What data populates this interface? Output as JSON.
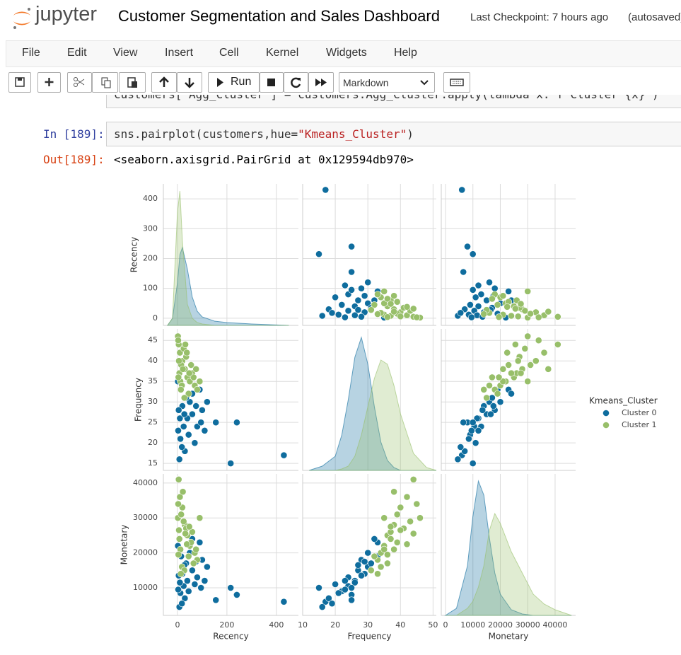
{
  "header": {
    "logo": "jupyter",
    "title": "Customer Segmentation and Sales Dashboard",
    "checkpoint": "Last Checkpoint: 7 hours ago",
    "autosave": "(autosaved)"
  },
  "menu": [
    "File",
    "Edit",
    "View",
    "Insert",
    "Cell",
    "Kernel",
    "Widgets",
    "Help"
  ],
  "toolbar": {
    "run": "Run",
    "cell_type": "Markdown"
  },
  "cells": {
    "hidden_code": "customers[\"Agg_Cluster\"] = customers.Agg_Cluster.apply(lambda x: f\"Cluster {x}\")",
    "in_prompt": "In [189]:",
    "code": [
      "sns.pairplot(customers,hue=",
      "\"Kmeans_Cluster\"",
      ")"
    ],
    "out_prompt": "Out[189]:",
    "output": "<seaborn.axisgrid.PairGrid at 0x129594db970>"
  },
  "chart_data": {
    "type": "pairplot",
    "legend_title": "Kmeans_Cluster",
    "grid": true,
    "diag_ylim": [
      0,
      1
    ],
    "variables": [
      {
        "name": "Recency",
        "xlim": [
          -57,
          489
        ],
        "ylim": [
          -24,
          450
        ],
        "xticks": [
          0,
          200,
          400
        ],
        "yticks": [
          0,
          100,
          200,
          300,
          400
        ]
      },
      {
        "name": "Frequency",
        "xlim": [
          10,
          51
        ],
        "ylim": [
          13.3,
          47.8
        ],
        "xticks": [
          10,
          20,
          30,
          40,
          50
        ],
        "yticks": [
          15,
          20,
          25,
          30,
          35,
          40,
          45
        ]
      },
      {
        "name": "Monetary",
        "xlim": [
          -1550,
          47500
        ],
        "ylim": [
          2100,
          42600
        ],
        "xticks": [
          0,
          10000,
          20000,
          30000,
          40000
        ],
        "yticks": [
          10000,
          20000,
          30000,
          40000
        ]
      }
    ],
    "series": [
      {
        "name": "Cluster 0",
        "color": "#0f6d9e",
        "data": [
          [
            430,
            215,
            240,
            155,
            120,
            100,
            90,
            80,
            70,
            60,
            50,
            45,
            40,
            35,
            30,
            25,
            20,
            15,
            12,
            10,
            8,
            5,
            3,
            2,
            60,
            110,
            75,
            18,
            28,
            95
          ],
          [
            17,
            15,
            25,
            25,
            30,
            28,
            33,
            24,
            20,
            27,
            30,
            22,
            26,
            31,
            18,
            24,
            29,
            33,
            21,
            26,
            16,
            28,
            23,
            35,
            32,
            23,
            29,
            19,
            27,
            25
          ],
          [
            6000,
            10000,
            8000,
            6500,
            16000,
            18000,
            23000,
            13000,
            11000,
            15000,
            20000,
            9000,
            12000,
            17000,
            7000,
            10500,
            14000,
            19000,
            8500,
            11500,
            4500,
            13500,
            9500,
            22000,
            24000,
            12000,
            17500,
            5500,
            16500,
            10000
          ]
        ],
        "kde": [
          {
            "x": [
              -40,
              -20,
              0,
              10,
              20,
              40,
              60,
              80,
              100,
              150,
              200,
              300,
              450
            ],
            "density": [
              0,
              0.05,
              0.3,
              0.5,
              0.55,
              0.4,
              0.2,
              0.1,
              0.06,
              0.03,
              0.02,
              0.01,
              0
            ]
          },
          {
            "x": [
              12,
              16,
              20,
              22,
              24,
              26,
              28,
              30,
              32,
              34,
              36,
              38,
              40,
              44,
              48,
              51
            ],
            "density": [
              0,
              0.03,
              0.1,
              0.25,
              0.5,
              0.8,
              0.94,
              0.75,
              0.45,
              0.2,
              0.07,
              0.02,
              0,
              0,
              0,
              0
            ]
          },
          {
            "x": [
              0,
              4000,
              8000,
              10000,
              12000,
              14000,
              16000,
              18000,
              20000,
              24000,
              28000,
              32000,
              36000,
              40000,
              46000
            ],
            "density": [
              0,
              0.05,
              0.35,
              0.7,
              0.95,
              0.85,
              0.55,
              0.3,
              0.15,
              0.04,
              0.01,
              0,
              0,
              0,
              0
            ]
          }
        ]
      },
      {
        "name": "Cluster 1",
        "color": "#98bf6a",
        "data": [
          [
            5,
            2,
            10,
            20,
            30,
            40,
            50,
            60,
            70,
            80,
            15,
            25,
            35,
            8,
            12,
            45,
            55,
            65,
            3,
            18,
            22,
            28,
            6,
            90,
            38,
            14,
            48,
            4,
            32,
            75
          ],
          [
            44,
            46,
            42,
            40,
            38,
            36,
            35,
            37,
            34,
            33,
            39,
            43,
            41,
            37,
            35,
            32,
            39,
            36,
            45,
            34,
            38,
            31,
            40,
            35,
            42,
            33,
            37,
            36,
            44,
            38
          ],
          [
            41000,
            30000,
            36000,
            33000,
            28000,
            25000,
            22000,
            26000,
            20000,
            18000,
            31000,
            29000,
            27000,
            24000,
            21000,
            19000,
            23000,
            17000,
            34000,
            16000,
            37500,
            15000,
            26500,
            30000,
            22500,
            14000,
            27500,
            19500,
            25500,
            21000
          ]
        ],
        "kde": [
          {
            "x": [
              -40,
              -20,
              0,
              10,
              20,
              40,
              60,
              80,
              100,
              150,
              200,
              300,
              450
            ],
            "density": [
              0,
              0.05,
              0.8,
              0.95,
              0.6,
              0.15,
              0.05,
              0.02,
              0.01,
              0,
              0,
              0,
              0
            ]
          },
          {
            "x": [
              12,
              16,
              20,
              22,
              24,
              26,
              28,
              30,
              32,
              34,
              36,
              38,
              40,
              44,
              48,
              51
            ],
            "density": [
              0,
              0,
              0,
              0.01,
              0.03,
              0.1,
              0.25,
              0.45,
              0.65,
              0.78,
              0.75,
              0.6,
              0.4,
              0.12,
              0.02,
              0
            ]
          },
          {
            "x": [
              0,
              4000,
              8000,
              10000,
              12000,
              14000,
              16000,
              18000,
              20000,
              24000,
              28000,
              32000,
              36000,
              40000,
              46000
            ],
            "density": [
              0,
              0,
              0.05,
              0.1,
              0.2,
              0.35,
              0.6,
              0.72,
              0.65,
              0.45,
              0.3,
              0.15,
              0.08,
              0.04,
              0
            ]
          }
        ]
      }
    ]
  }
}
